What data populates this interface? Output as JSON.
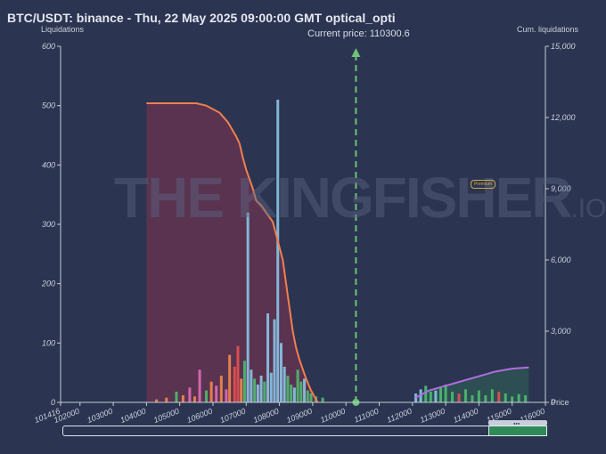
{
  "header": {
    "title": "BTC/USDT: binance - Thu, 22 May 2025 09:00:00 GMT optical_opti"
  },
  "watermark": {
    "text": "THE KINGFISHER",
    "tld": ".IO",
    "badge": "Premium"
  },
  "chart_data": {
    "type": "bar",
    "left_axis_title": "Liquidations",
    "right_axis_title": "Cum. liquidations",
    "x_axis_title": "Price",
    "current_price_label": "Current price: 110300.6",
    "current_price": 110300.6,
    "xlim": [
      101416,
      116000
    ],
    "ylim_left": [
      0,
      600
    ],
    "ylim_right": [
      0,
      15000
    ],
    "x_ticks": [
      101416,
      102000,
      103000,
      104000,
      105000,
      106000,
      107000,
      108000,
      109000,
      110000,
      111000,
      112000,
      113000,
      114000,
      115000,
      116000
    ],
    "x_tick_labels": [
      "101416",
      "102000",
      "103000",
      "104000",
      "105000",
      "106000",
      "107000",
      "108000",
      "109000",
      "110000",
      "111000",
      "112000",
      "113000",
      "114000",
      "115000",
      "116000"
    ],
    "y_left_ticks": [
      0,
      100,
      200,
      300,
      400,
      500,
      600
    ],
    "y_left_tick_labels": [
      "0",
      "100",
      "200",
      "300",
      "400",
      "500",
      "600"
    ],
    "y_right_ticks": [
      0,
      3000,
      6000,
      9000,
      12000,
      15000
    ],
    "y_right_tick_labels": [
      "0",
      "3,000",
      "6,000",
      "9,000",
      "12,000",
      "15,000"
    ],
    "grid": false,
    "colors": {
      "background": "#2b3450",
      "long_fill": "#6b3350",
      "long_cum_line": "#f07f4f",
      "short_cum_line": "#b06ee0",
      "short_fill": "#2f5a52",
      "current_price_line": "#6fc27a",
      "bar_blue": "#8ac4e6",
      "bar_pink": "#e06cb8",
      "bar_orange": "#f08a4b",
      "bar_green": "#4dbb72",
      "bar_red": "#e8504f"
    },
    "long_cumulative": {
      "name": "",
      "x": [
        104000,
        105500,
        105800,
        106200,
        106450,
        106700,
        106800,
        106900,
        107000,
        107200,
        107300,
        107450,
        107600,
        107800,
        107950,
        108100,
        108200,
        108300,
        108400,
        108500,
        108600,
        108700,
        108800,
        108950,
        109150
      ],
      "values": [
        12600,
        12600,
        12500,
        12200,
        11800,
        11200,
        10900,
        10300,
        9800,
        9000,
        8500,
        8300,
        8000,
        7600,
        6800,
        6000,
        5000,
        4000,
        3000,
        2300,
        1800,
        1400,
        1000,
        500,
        0
      ]
    },
    "short_cumulative": {
      "name": "",
      "x": [
        112100,
        112500,
        113000,
        113500,
        114000,
        114500,
        115000,
        115500
      ],
      "values": [
        200,
        500,
        700,
        900,
        1100,
        1300,
        1420,
        1470
      ]
    },
    "liquidation_bars": {
      "x": [
        104300,
        104600,
        104900,
        105100,
        105300,
        105450,
        105600,
        105800,
        105950,
        106100,
        106250,
        106400,
        106500,
        106650,
        106750,
        106850,
        106950,
        107050,
        107150,
        107250,
        107350,
        107450,
        107550,
        107650,
        107750,
        107850,
        107950,
        108050,
        108150,
        108250,
        108350,
        108450,
        108550,
        108650,
        108750,
        108850,
        108950,
        109100,
        109300,
        112100,
        112250,
        112400,
        112550,
        112700,
        112850,
        113000,
        113200,
        113400,
        113600,
        113800,
        114000,
        114200,
        114400,
        114600,
        114800,
        115000,
        115200,
        115400
      ],
      "values": [
        5,
        8,
        18,
        12,
        25,
        10,
        55,
        20,
        35,
        28,
        45,
        22,
        80,
        60,
        95,
        40,
        70,
        320,
        55,
        40,
        30,
        45,
        35,
        150,
        50,
        140,
        510,
        100,
        60,
        45,
        30,
        25,
        55,
        35,
        40,
        20,
        15,
        10,
        8,
        15,
        22,
        28,
        18,
        20,
        25,
        30,
        18,
        15,
        22,
        12,
        20,
        12,
        22,
        18,
        15,
        10,
        14,
        12
      ],
      "colors": [
        "orange",
        "orange",
        "green",
        "orange",
        "pink",
        "orange",
        "pink",
        "green",
        "orange",
        "pink",
        "orange",
        "pink",
        "orange",
        "red",
        "red",
        "orange",
        "green",
        "blue",
        "blue",
        "green",
        "blue",
        "blue",
        "green",
        "blue",
        "blue",
        "blue",
        "blue",
        "blue",
        "blue",
        "green",
        "green",
        "blue",
        "green",
        "green",
        "blue",
        "green",
        "green",
        "green",
        "green",
        "blue",
        "blue",
        "green",
        "green",
        "blue",
        "green",
        "green",
        "green",
        "red",
        "green",
        "green",
        "green",
        "green",
        "green",
        "red",
        "green",
        "green",
        "green",
        "green"
      ]
    }
  }
}
